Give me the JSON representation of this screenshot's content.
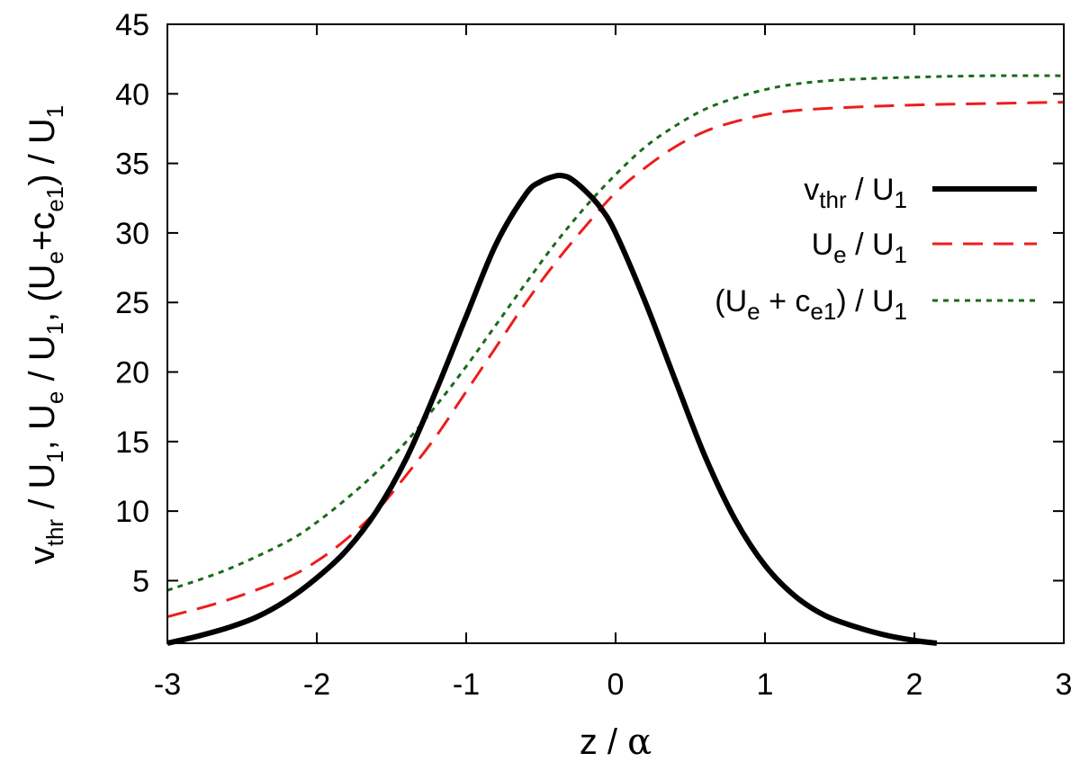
{
  "chart_data": {
    "type": "line",
    "title": "",
    "xlim": [
      -3,
      3
    ],
    "ylim": [
      0.5,
      45
    ],
    "x_ticks": [
      -3,
      -2,
      -1,
      0,
      1,
      2,
      3
    ],
    "y_ticks": [
      5,
      10,
      15,
      20,
      25,
      30,
      35,
      40,
      45
    ],
    "x_tick_labels": [
      "-3",
      "-2",
      "-1",
      "0",
      "1",
      "2",
      "3"
    ],
    "y_tick_labels": [
      "5",
      "10",
      "15",
      "20",
      "25",
      "30",
      "35",
      "40",
      "45"
    ],
    "xlabel": {
      "main": "z / ",
      "symbol": "α"
    },
    "ylabel": {
      "part1": "v",
      "part1_sub": "thr",
      "part2": " / U",
      "part2_sub": "1",
      "part3": ",  U",
      "part3_sub": "e",
      "part4": " / U",
      "part4_sub": "1",
      "part5": ",  (U",
      "part5_sub": "e",
      "part6": "+c",
      "part6_sub": "e1",
      "part7": ") / U",
      "part7_sub": "1"
    },
    "legend_position": "right, upper-middle",
    "grid": false,
    "series": [
      {
        "name": "v_thr / U_1",
        "label": {
          "a": "v",
          "a_sub": "thr",
          "b": " / U",
          "b_sub": "1"
        },
        "color": "#000000",
        "style": "solid",
        "x": [
          -3.0,
          -2.8,
          -2.6,
          -2.4,
          -2.2,
          -2.0,
          -1.8,
          -1.6,
          -1.4,
          -1.2,
          -1.0,
          -0.8,
          -0.6,
          -0.5,
          -0.4,
          -0.35,
          -0.3,
          -0.2,
          -0.1,
          0.0,
          0.2,
          0.4,
          0.6,
          0.8,
          1.0,
          1.2,
          1.4,
          1.6,
          1.8,
          2.0,
          2.15
        ],
        "y": [
          0.5,
          1.0,
          1.6,
          2.4,
          3.6,
          5.2,
          7.2,
          10.0,
          13.8,
          18.7,
          24.0,
          29.2,
          32.8,
          33.7,
          34.1,
          34.1,
          33.9,
          33.0,
          31.8,
          30.0,
          25.0,
          19.4,
          13.9,
          9.4,
          6.1,
          3.9,
          2.5,
          1.7,
          1.1,
          0.7,
          0.5
        ]
      },
      {
        "name": "U_e / U_1",
        "label": {
          "a": "U",
          "a_sub": "e",
          "b": " / U",
          "b_sub": "1"
        },
        "color": "#ee1c1c",
        "style": "dashed",
        "x": [
          -3.0,
          -2.6,
          -2.2,
          -2.0,
          -1.8,
          -1.6,
          -1.4,
          -1.2,
          -1.0,
          -0.8,
          -0.6,
          -0.4,
          -0.2,
          0.0,
          0.2,
          0.4,
          0.6,
          0.8,
          1.0,
          1.2,
          1.5,
          2.0,
          2.5,
          3.0
        ],
        "y": [
          2.4,
          3.6,
          5.2,
          6.4,
          8.0,
          10.0,
          12.6,
          15.4,
          18.6,
          21.8,
          25.0,
          27.9,
          30.5,
          32.9,
          34.7,
          36.2,
          37.3,
          38.0,
          38.5,
          38.8,
          39.0,
          39.2,
          39.3,
          39.4
        ]
      },
      {
        "name": "(U_e + c_e1) / U_1",
        "label": {
          "a": "(U",
          "a_sub": "e",
          "b": " + c",
          "b_sub": "e1",
          "c": ") / U",
          "c_sub": "1"
        },
        "color": "#1a6b1a",
        "style": "dotted",
        "x": [
          -3.0,
          -2.6,
          -2.2,
          -2.0,
          -1.8,
          -1.6,
          -1.4,
          -1.2,
          -1.0,
          -0.8,
          -0.6,
          -0.4,
          -0.2,
          0.0,
          0.2,
          0.4,
          0.6,
          0.8,
          1.0,
          1.2,
          1.5,
          2.0,
          2.5,
          3.0
        ],
        "y": [
          4.3,
          5.8,
          7.8,
          9.2,
          10.9,
          12.8,
          15.0,
          17.6,
          20.4,
          23.4,
          26.4,
          29.3,
          31.9,
          34.2,
          36.2,
          37.7,
          38.9,
          39.7,
          40.3,
          40.7,
          41.0,
          41.2,
          41.3,
          41.3
        ]
      }
    ]
  }
}
